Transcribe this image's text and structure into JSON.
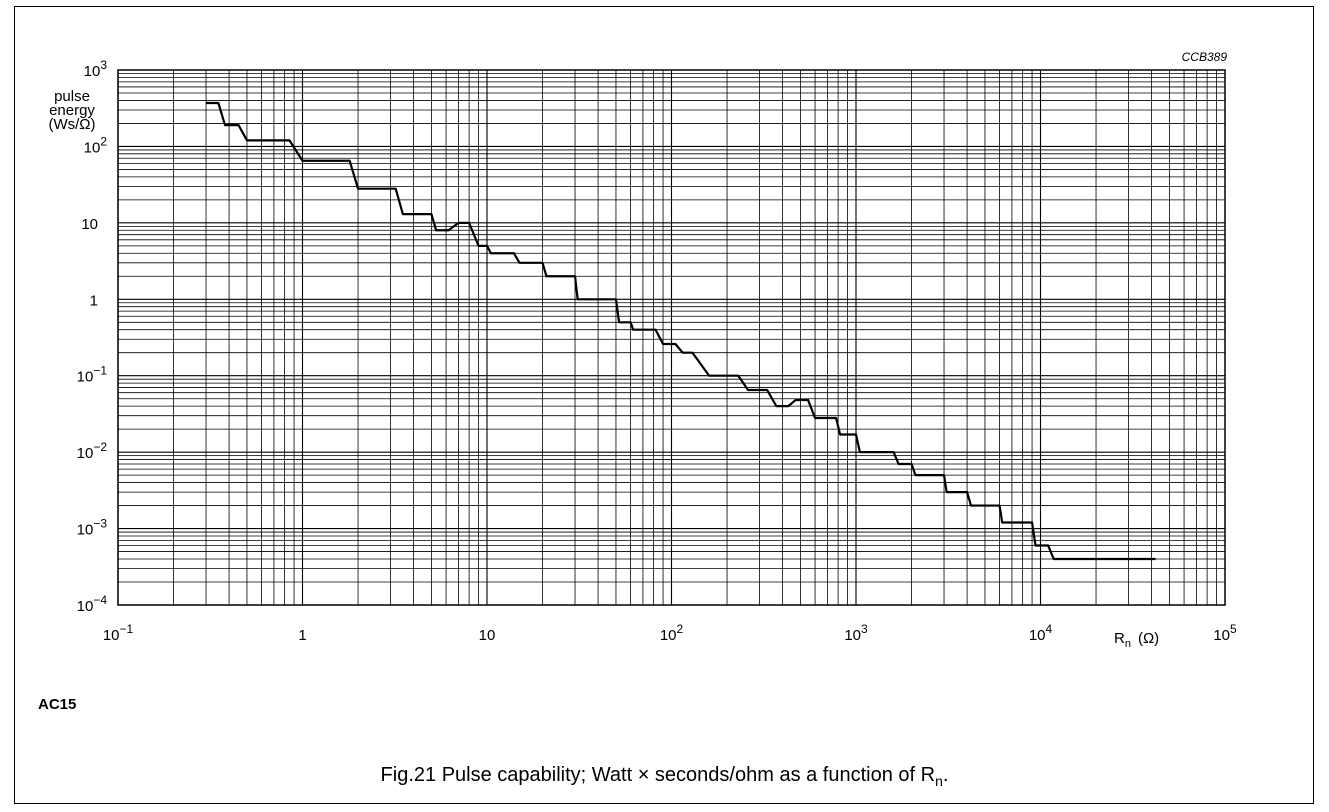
{
  "figure": {
    "code": "CCB389",
    "device": "AC15",
    "caption_main": "Fig.21  Pulse capability; Watt × seconds/ohm as a function of R",
    "caption_sub": "n",
    "caption_end": "."
  },
  "chart_data": {
    "type": "line",
    "title": "",
    "xlabel_main": "R",
    "xlabel_sub": "n",
    "xlabel_unit": "(Ω)",
    "ylabel_lines": [
      "pulse",
      "energy",
      "(Ws/Ω)"
    ],
    "xscale": "log",
    "yscale": "log",
    "xlim": [
      0.1,
      100000
    ],
    "ylim": [
      0.0001,
      1000
    ],
    "grid": true,
    "x_ticks": [
      {
        "value": 0.1,
        "base": "10",
        "exp": "−1"
      },
      {
        "value": 1,
        "label": "1"
      },
      {
        "value": 10,
        "label": "10"
      },
      {
        "value": 100,
        "base": "10",
        "exp": "2"
      },
      {
        "value": 1000,
        "base": "10",
        "exp": "3"
      },
      {
        "value": 10000,
        "base": "10",
        "exp": "4"
      },
      {
        "value": 100000,
        "base": "10",
        "exp": "5"
      }
    ],
    "y_ticks": [
      {
        "value": 0.0001,
        "base": "10",
        "exp": "−4"
      },
      {
        "value": 0.001,
        "base": "10",
        "exp": "−3"
      },
      {
        "value": 0.01,
        "base": "10",
        "exp": "−2"
      },
      {
        "value": 0.1,
        "base": "10",
        "exp": "−1"
      },
      {
        "value": 1,
        "label": "1"
      },
      {
        "value": 10,
        "label": "10"
      },
      {
        "value": 100,
        "base": "10",
        "exp": "2"
      },
      {
        "value": 1000,
        "base": "10",
        "exp": "3"
      }
    ],
    "series": [
      {
        "points": [
          [
            0.3,
            370
          ],
          [
            0.35,
            370
          ],
          [
            0.38,
            190
          ],
          [
            0.45,
            190
          ],
          [
            0.5,
            120
          ],
          [
            0.85,
            120
          ],
          [
            1.0,
            65
          ],
          [
            1.8,
            65
          ],
          [
            2.0,
            28
          ],
          [
            3.2,
            28
          ],
          [
            3.5,
            13
          ],
          [
            5.0,
            13
          ],
          [
            5.3,
            8
          ],
          [
            6.2,
            8
          ],
          [
            7.0,
            10
          ],
          [
            8.0,
            10
          ],
          [
            9.0,
            5
          ],
          [
            10.0,
            5
          ],
          [
            10.5,
            4
          ],
          [
            14.0,
            4
          ],
          [
            15.0,
            3
          ],
          [
            20.0,
            3
          ],
          [
            21.0,
            2
          ],
          [
            30.0,
            2
          ],
          [
            31.0,
            1
          ],
          [
            50.0,
            1
          ],
          [
            52.0,
            0.5
          ],
          [
            60.0,
            0.5
          ],
          [
            62.0,
            0.4
          ],
          [
            82.0,
            0.4
          ],
          [
            90.0,
            0.26
          ],
          [
            105.0,
            0.26
          ],
          [
            115.0,
            0.2
          ],
          [
            130.0,
            0.2
          ],
          [
            160.0,
            0.1
          ],
          [
            230.0,
            0.1
          ],
          [
            260.0,
            0.065
          ],
          [
            330.0,
            0.065
          ],
          [
            370.0,
            0.04
          ],
          [
            430.0,
            0.04
          ],
          [
            470.0,
            0.048
          ],
          [
            550.0,
            0.048
          ],
          [
            600.0,
            0.028
          ],
          [
            780.0,
            0.028
          ],
          [
            820.0,
            0.017
          ],
          [
            1000.0,
            0.017
          ],
          [
            1050.0,
            0.01
          ],
          [
            1600.0,
            0.01
          ],
          [
            1700.0,
            0.007
          ],
          [
            2000.0,
            0.007
          ],
          [
            2100.0,
            0.005
          ],
          [
            3000.0,
            0.005
          ],
          [
            3100.0,
            0.003
          ],
          [
            4000.0,
            0.003
          ],
          [
            4200.0,
            0.002
          ],
          [
            6000.0,
            0.002
          ],
          [
            6200.0,
            0.0012
          ],
          [
            9000.0,
            0.0012
          ],
          [
            9400.0,
            0.0006
          ],
          [
            11000.0,
            0.0006
          ],
          [
            11800.0,
            0.0004
          ],
          [
            42000.0,
            0.0004
          ]
        ]
      }
    ]
  }
}
